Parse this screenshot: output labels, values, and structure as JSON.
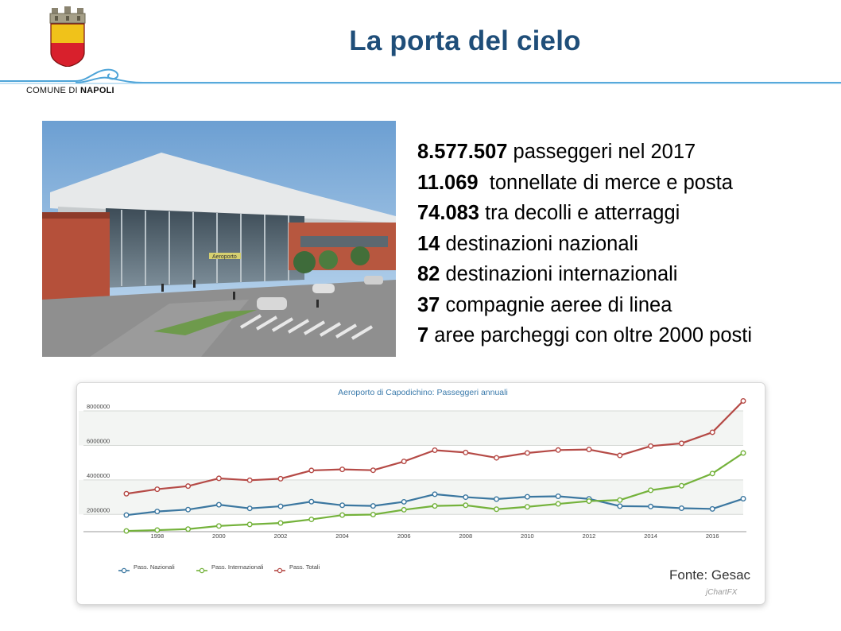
{
  "header": {
    "title": "La porta del cielo",
    "brand_prefix": "COMUNE DI",
    "brand_name": "NAPOLI"
  },
  "stats": [
    {
      "value": "8.577.507",
      "text": " passeggeri nel 2017"
    },
    {
      "value": "11.069",
      "text": "  tonnellate di merce e posta"
    },
    {
      "value": "74.083",
      "text": " tra decolli e atterraggi"
    },
    {
      "value": "14",
      "text": " destinazioni nazionali"
    },
    {
      "value": "82",
      "text": " destinazioni internazionali"
    },
    {
      "value": "37",
      "text": " compagnie aeree di linea"
    },
    {
      "value": "7",
      "text": " aree parcheggi con oltre 2000 posti"
    }
  ],
  "photo": {
    "signage_text": "Aeroporto"
  },
  "source": "Fonte: Gesac",
  "credit": "jChartFX",
  "chart_data": {
    "type": "line",
    "title": "Aeroporto di Capodichino: Passeggeri annuali",
    "x": [
      1997,
      1998,
      1999,
      2000,
      2001,
      2002,
      2003,
      2004,
      2005,
      2006,
      2007,
      2008,
      2009,
      2010,
      2011,
      2012,
      2013,
      2014,
      2015,
      2016,
      2017
    ],
    "xticks": [
      1998,
      2000,
      2002,
      2004,
      2006,
      2008,
      2010,
      2012,
      2014,
      2016
    ],
    "yticks": [
      2000000,
      4000000,
      6000000,
      8000000
    ],
    "ytick_labels": [
      "2000000",
      "4000000",
      "6000000",
      "8000000"
    ],
    "ylim": [
      1000000,
      8600000
    ],
    "grid": true,
    "legend_position": "bottom-left",
    "series": [
      {
        "name": "Pass. Nazionali",
        "color": "#3b77a0",
        "values": [
          1960000,
          2170000,
          2280000,
          2560000,
          2350000,
          2470000,
          2740000,
          2530000,
          2490000,
          2730000,
          3170000,
          3000000,
          2890000,
          3020000,
          3050000,
          2900000,
          2480000,
          2460000,
          2360000,
          2320000,
          2910000
        ]
      },
      {
        "name": "Pass. Internazionali",
        "color": "#74b23b",
        "values": [
          1040000,
          1090000,
          1150000,
          1330000,
          1420000,
          1500000,
          1710000,
          1960000,
          1990000,
          2270000,
          2490000,
          2530000,
          2300000,
          2440000,
          2610000,
          2770000,
          2830000,
          3400000,
          3660000,
          4370000,
          5560000
        ]
      },
      {
        "name": "Pass. Totali",
        "color": "#b54a46",
        "values": [
          3200000,
          3460000,
          3640000,
          4090000,
          3980000,
          4070000,
          4550000,
          4610000,
          4560000,
          5070000,
          5720000,
          5590000,
          5280000,
          5560000,
          5730000,
          5760000,
          5420000,
          5960000,
          6120000,
          6760000,
          8577507
        ]
      }
    ]
  }
}
